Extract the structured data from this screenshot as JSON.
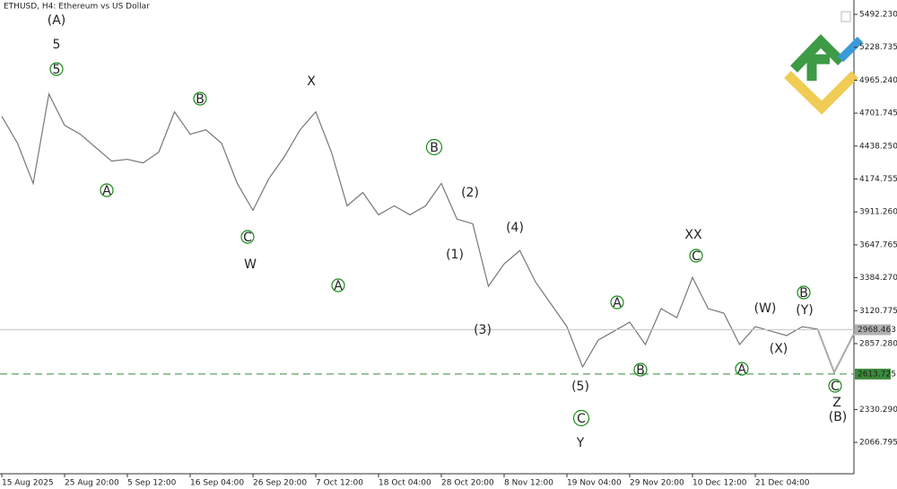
{
  "chart_data": {
    "type": "line",
    "title": "ETHUSD, H4:  Ethereum vs US Dollar",
    "categories": [
      "15 Aug 2025",
      null,
      null,
      null,
      "25 Aug 20:00",
      null,
      null,
      null,
      "5 Sep 12:00",
      null,
      null,
      null,
      "16 Sep 04:00",
      null,
      null,
      null,
      "26 Sep 20:00",
      null,
      null,
      null,
      "7 Oct 12:00",
      null,
      null,
      null,
      "18 Oct 04:00",
      null,
      null,
      null,
      "28 Oct 20:00",
      null,
      null,
      null,
      "8 Nov 12:00",
      null,
      null,
      null,
      "19 Nov 04:00",
      null,
      null,
      null,
      "29 Nov 20:00",
      null,
      null,
      null,
      "10 Dec 12:00",
      null,
      null,
      null,
      "21 Dec 04:00",
      null,
      null,
      null,
      null
    ],
    "series": [
      {
        "color": "#777777",
        "values": [
          4676,
          4461,
          4139,
          4855,
          4604,
          4533,
          4425,
          4318,
          4332,
          4303,
          4389,
          4712,
          4533,
          4568,
          4461,
          4139,
          3924,
          4175,
          4353,
          4568,
          4712,
          4389,
          3960,
          4067,
          3888,
          3960,
          3888,
          3960,
          4139,
          3853,
          3817,
          3316,
          3495,
          3602,
          3351,
          3172,
          2993,
          2671,
          2886,
          2957,
          3029,
          2850,
          3137,
          3065,
          3387,
          3137,
          3101,
          2850,
          2993,
          2957,
          2922,
          2993,
          2972
        ]
      }
    ],
    "ylim": [
      1816,
      5607
    ],
    "yticks": [
      {
        "value": 5492.23,
        "label": "5492.230"
      },
      5228.735,
      {
        "value": 4965.24,
        "label": "4965.240"
      },
      4701.745,
      {
        "value": 4438.25,
        "label": "4438.250"
      },
      4174.755,
      {
        "value": 3911.26,
        "label": "3911.260"
      },
      3647.765,
      {
        "value": 3384.27,
        "label": "3384.270"
      },
      3120.775,
      {
        "value": 2857.28,
        "label": "2857.280"
      },
      {
        "value": 2330.29,
        "label": "2330.290"
      },
      2066.795
    ],
    "current_price": 2968.463,
    "level": 2613.725,
    "annotations": [
      {
        "text": "(A)",
        "color": "#1a1a6e"
      },
      {
        "text": "5",
        "color": "#8b0000"
      },
      {
        "text": "5",
        "color": "#1a8a1a",
        "circled": true
      },
      {
        "text": "B",
        "color": "#1a8a1a",
        "circled": true
      },
      {
        "text": "A",
        "color": "#1a8a1a",
        "circled": true
      },
      {
        "text": "X",
        "color": "#8b0000"
      },
      {
        "text": "C",
        "color": "#1a8a1a",
        "circled": true
      },
      {
        "text": "W",
        "color": "#8b0000"
      },
      {
        "text": "A",
        "color": "#1a8a1a",
        "circled": true
      },
      {
        "text": "B",
        "color": "#1a8a1a",
        "circled": true
      },
      {
        "text": "(2)",
        "color": "#1a1a6e"
      },
      {
        "text": "(1)",
        "color": "#1a1a6e"
      },
      {
        "text": "(4)",
        "color": "#1a1a6e"
      },
      {
        "text": "(3)",
        "color": "#1a1a6e"
      },
      {
        "text": "A",
        "color": "#1a8a1a",
        "circled": true
      },
      {
        "text": "B",
        "color": "#1a8a1a",
        "circled": true
      },
      {
        "text": "(5)",
        "color": "#1a1a6e"
      },
      {
        "text": "C",
        "color": "#1a8a1a",
        "circled": true
      },
      {
        "text": "Y",
        "color": "#8b0000"
      },
      {
        "text": "XX",
        "color": "#8b0000"
      },
      {
        "text": "C",
        "color": "#1a8a1a",
        "circled": true
      },
      {
        "text": "(W)",
        "color": "#1a1a6e"
      },
      {
        "text": "(X)",
        "color": "#1a1a6e"
      },
      {
        "text": "A",
        "color": "#1a8a1a",
        "circled": true
      },
      {
        "text": "B",
        "color": "#1a8a1a",
        "circled": true
      },
      {
        "text": "(Y)",
        "color": "#1a1a6e"
      },
      {
        "text": "C",
        "color": "#1a8a1a",
        "circled": true
      },
      {
        "text": "Z",
        "color": "#8b0000"
      },
      {
        "text": "(B)",
        "color": "#1a1a6e"
      }
    ]
  }
}
